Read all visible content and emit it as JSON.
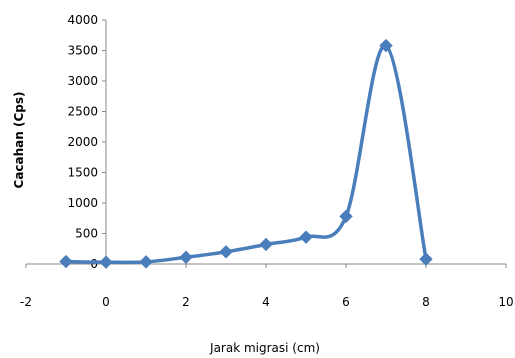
{
  "chart_data": {
    "type": "line",
    "xlabel": "Jarak migrasi (cm)",
    "ylabel": "Cacahan  (Cps)",
    "xlim": [
      -2,
      10
    ],
    "ylim": [
      0,
      4000
    ],
    "x_ticks": [
      -2,
      0,
      2,
      4,
      6,
      8,
      10
    ],
    "y_ticks": [
      0,
      500,
      1000,
      1500,
      2000,
      2500,
      3000,
      3500,
      4000
    ],
    "legend": "none",
    "grid": false,
    "smooth": true,
    "series": [
      {
        "color": "#4a7ebb",
        "marker": "diamond",
        "x": [
          -1,
          0,
          1,
          2,
          3,
          4,
          5,
          6,
          7,
          8
        ],
        "y": [
          40,
          30,
          35,
          110,
          200,
          320,
          440,
          780,
          3580,
          80
        ]
      }
    ]
  }
}
